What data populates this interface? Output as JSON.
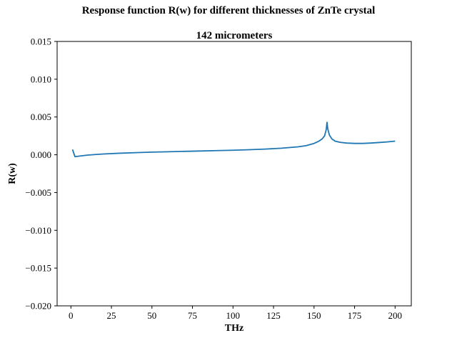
{
  "figure": {
    "suptitle": "Response function R(w) for different thicknesses of ZnTe crystal"
  },
  "chart_data": {
    "type": "line",
    "title": "142 micrometers",
    "xlabel": "THz",
    "ylabel": "R(w)",
    "xlim": [
      -8.5,
      210
    ],
    "ylim": [
      -0.02,
      0.015
    ],
    "xticks": [
      0,
      25,
      50,
      75,
      100,
      125,
      150,
      175,
      200
    ],
    "xtick_labels": [
      "0",
      "25",
      "50",
      "75",
      "100",
      "125",
      "150",
      "175",
      "200"
    ],
    "yticks": [
      -0.02,
      -0.015,
      -0.01,
      -0.005,
      0.0,
      0.005,
      0.01,
      0.015
    ],
    "ytick_labels": [
      "−0.020",
      "−0.015",
      "−0.010",
      "−0.005",
      "0.000",
      "0.005",
      "0.010",
      "0.015"
    ],
    "grid": false,
    "series": [
      {
        "color": "#1f77b4",
        "x": [
          1,
          2.5,
          5,
          10,
          15,
          20,
          30,
          40,
          50,
          60,
          70,
          80,
          90,
          100,
          110,
          120,
          130,
          140,
          145,
          150,
          153,
          155,
          156.5,
          157.5,
          158,
          158.5,
          159.5,
          161,
          163,
          166,
          170,
          175,
          180,
          185,
          190,
          195,
          200
        ],
        "y": [
          0.0007,
          -0.00025,
          -0.00018,
          -5e-05,
          3e-05,
          0.0001,
          0.0002,
          0.00028,
          0.00035,
          0.0004,
          0.00045,
          0.0005,
          0.00055,
          0.0006,
          0.00067,
          0.00075,
          0.00087,
          0.00105,
          0.0012,
          0.0015,
          0.0018,
          0.0021,
          0.0025,
          0.0033,
          0.0043,
          0.0034,
          0.0026,
          0.0021,
          0.0018,
          0.00165,
          0.00155,
          0.0015,
          0.0015,
          0.00155,
          0.00162,
          0.0017,
          0.0018
        ]
      }
    ]
  }
}
